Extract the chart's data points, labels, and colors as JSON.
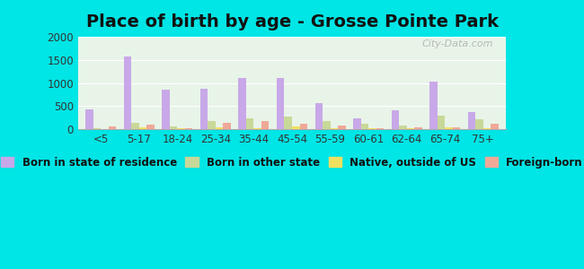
{
  "title": "Place of birth by age - Grosse Pointe Park",
  "categories": [
    "<5",
    "5-17",
    "18-24",
    "25-34",
    "35-44",
    "45-54",
    "55-59",
    "60-61",
    "62-64",
    "65-74",
    "75+"
  ],
  "series": {
    "Born in state of residence": [
      420,
      1580,
      850,
      880,
      1100,
      1110,
      560,
      240,
      400,
      1040,
      370
    ],
    "Born in other state": [
      20,
      130,
      50,
      170,
      240,
      270,
      185,
      115,
      70,
      290,
      215
    ],
    "Native, outside of US": [
      10,
      30,
      15,
      40,
      25,
      65,
      15,
      20,
      25,
      30,
      20
    ],
    "Foreign-born": [
      55,
      90,
      25,
      145,
      175,
      110,
      80,
      25,
      30,
      45,
      110
    ]
  },
  "colors": {
    "Born in state of residence": "#c8a8e8",
    "Born in other state": "#c8d898",
    "Native, outside of US": "#f0e060",
    "Foreign-born": "#f0a898"
  },
  "ylim": [
    0,
    2000
  ],
  "yticks": [
    0,
    500,
    1000,
    1500,
    2000
  ],
  "background_plot": "#e8f4e8",
  "background_fig": "#00e5e5",
  "watermark": "City-Data.com",
  "bar_width": 0.2,
  "legend_fontsize": 8.5,
  "title_fontsize": 14
}
